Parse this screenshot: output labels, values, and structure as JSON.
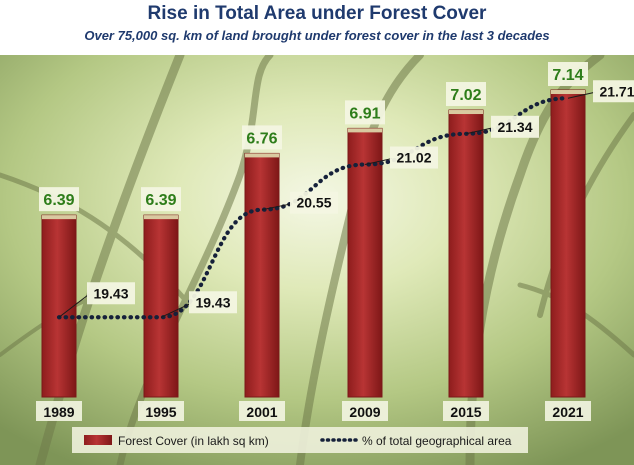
{
  "title": "Rise in Total Area under Forest Cover",
  "subtitle": "Over 75,000 sq. km of land brought under forest cover in the last 3 decades",
  "colors": {
    "bar": "#a52a2a",
    "bar_dark": "#7a1818",
    "value_label_bar": "#2e7d1a",
    "title": "#1f3a6e",
    "line": "#16213a"
  },
  "chart_data": {
    "type": "bar",
    "categories": [
      "1989",
      "1995",
      "2001",
      "2009",
      "2015",
      "2021"
    ],
    "series": [
      {
        "name": "Forest Cover (in lakh sq km)",
        "type": "bar",
        "values": [
          6.39,
          6.39,
          6.76,
          6.91,
          7.02,
          7.14
        ],
        "value_labels": [
          "6.39",
          "6.39",
          "6.76",
          "6.91",
          "7.02",
          "7.14"
        ]
      },
      {
        "name": "% of total geographical area",
        "type": "line",
        "style": "dotted",
        "values": [
          19.43,
          19.43,
          20.55,
          21.02,
          21.34,
          21.71
        ],
        "value_labels": [
          "19.43",
          "19.43",
          "20.55",
          "21.02",
          "21.34",
          "21.71"
        ]
      }
    ],
    "bar_axis_range": [
      5.3,
      7.2
    ],
    "line_axis_range": [
      18.6,
      21.9
    ],
    "grid": false,
    "legend": "bottom"
  }
}
